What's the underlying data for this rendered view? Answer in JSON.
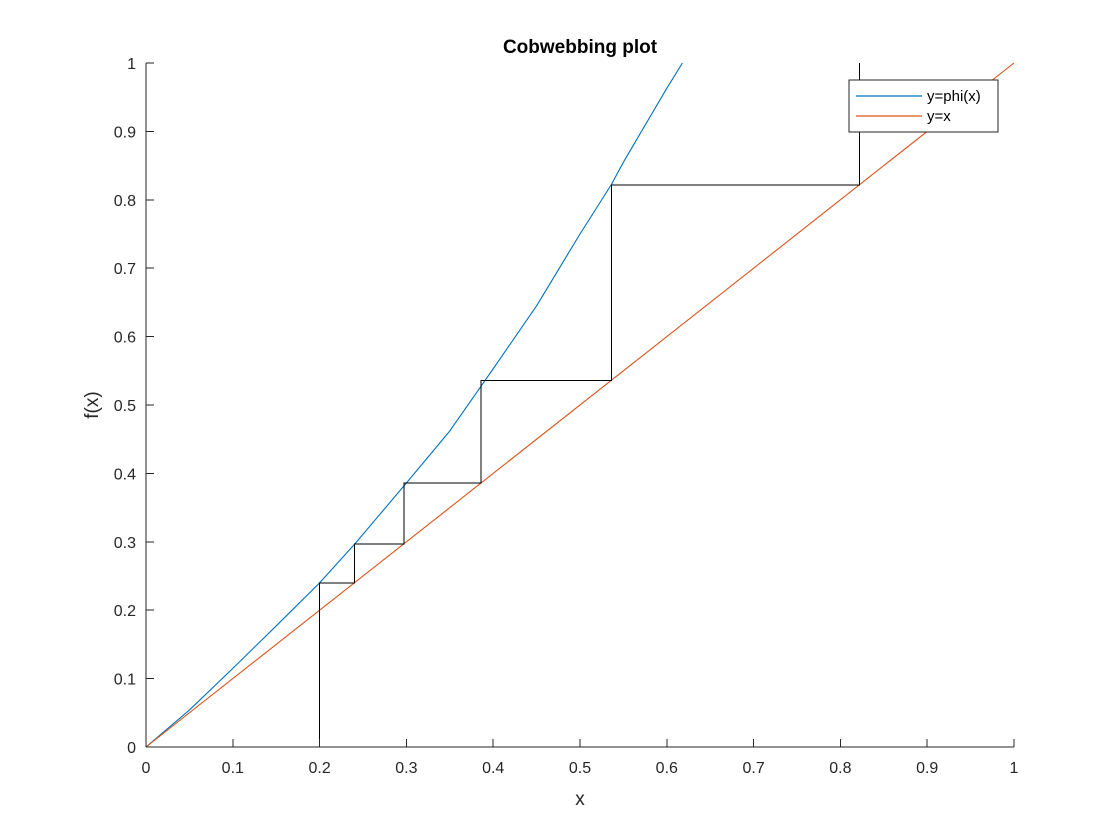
{
  "chart_data": {
    "type": "line",
    "title": "Cobwebbing plot",
    "xlabel": "x",
    "ylabel": "f(x)",
    "xlim": [
      0,
      1
    ],
    "ylim": [
      0,
      1
    ],
    "xticks": [
      0,
      0.1,
      0.2,
      0.3,
      0.4,
      0.5,
      0.6,
      0.7,
      0.8,
      0.9,
      1
    ],
    "yticks": [
      0,
      0.1,
      0.2,
      0.3,
      0.4,
      0.5,
      0.6,
      0.7,
      0.8,
      0.9,
      1
    ],
    "xtick_labels": [
      "0",
      "0.1",
      "0.2",
      "0.3",
      "0.4",
      "0.5",
      "0.6",
      "0.7",
      "0.8",
      "0.9",
      "1"
    ],
    "ytick_labels": [
      "0",
      "0.1",
      "0.2",
      "0.3",
      "0.4",
      "0.5",
      "0.6",
      "0.7",
      "0.8",
      "0.9",
      "1"
    ],
    "grid": false,
    "box": "open-top-right",
    "legend_position": "top-right",
    "series": [
      {
        "name": "y=phi(x)",
        "color": "#0072BD",
        "x": [
          0,
          0.05,
          0.1,
          0.15,
          0.2,
          0.24,
          0.3,
          0.35,
          0.4,
          0.45,
          0.5,
          0.536,
          0.55,
          0.6,
          0.618
        ],
        "y": [
          0,
          0.054,
          0.115,
          0.177,
          0.24,
          0.296,
          0.386,
          0.462,
          0.553,
          0.645,
          0.75,
          0.822,
          0.855,
          0.963,
          1.0
        ]
      },
      {
        "name": "y=x",
        "color": "#D95319",
        "x": [
          0,
          1
        ],
        "y": [
          0,
          1
        ]
      }
    ],
    "cobweb": {
      "color": "#000000",
      "x": [
        0.2,
        0.2,
        0.24,
        0.24,
        0.297,
        0.297,
        0.386,
        0.386,
        0.536,
        0.536,
        0.822,
        0.822
      ],
      "y": [
        0,
        0.24,
        0.24,
        0.297,
        0.297,
        0.386,
        0.386,
        0.536,
        0.536,
        0.822,
        0.822,
        1.0
      ]
    }
  }
}
